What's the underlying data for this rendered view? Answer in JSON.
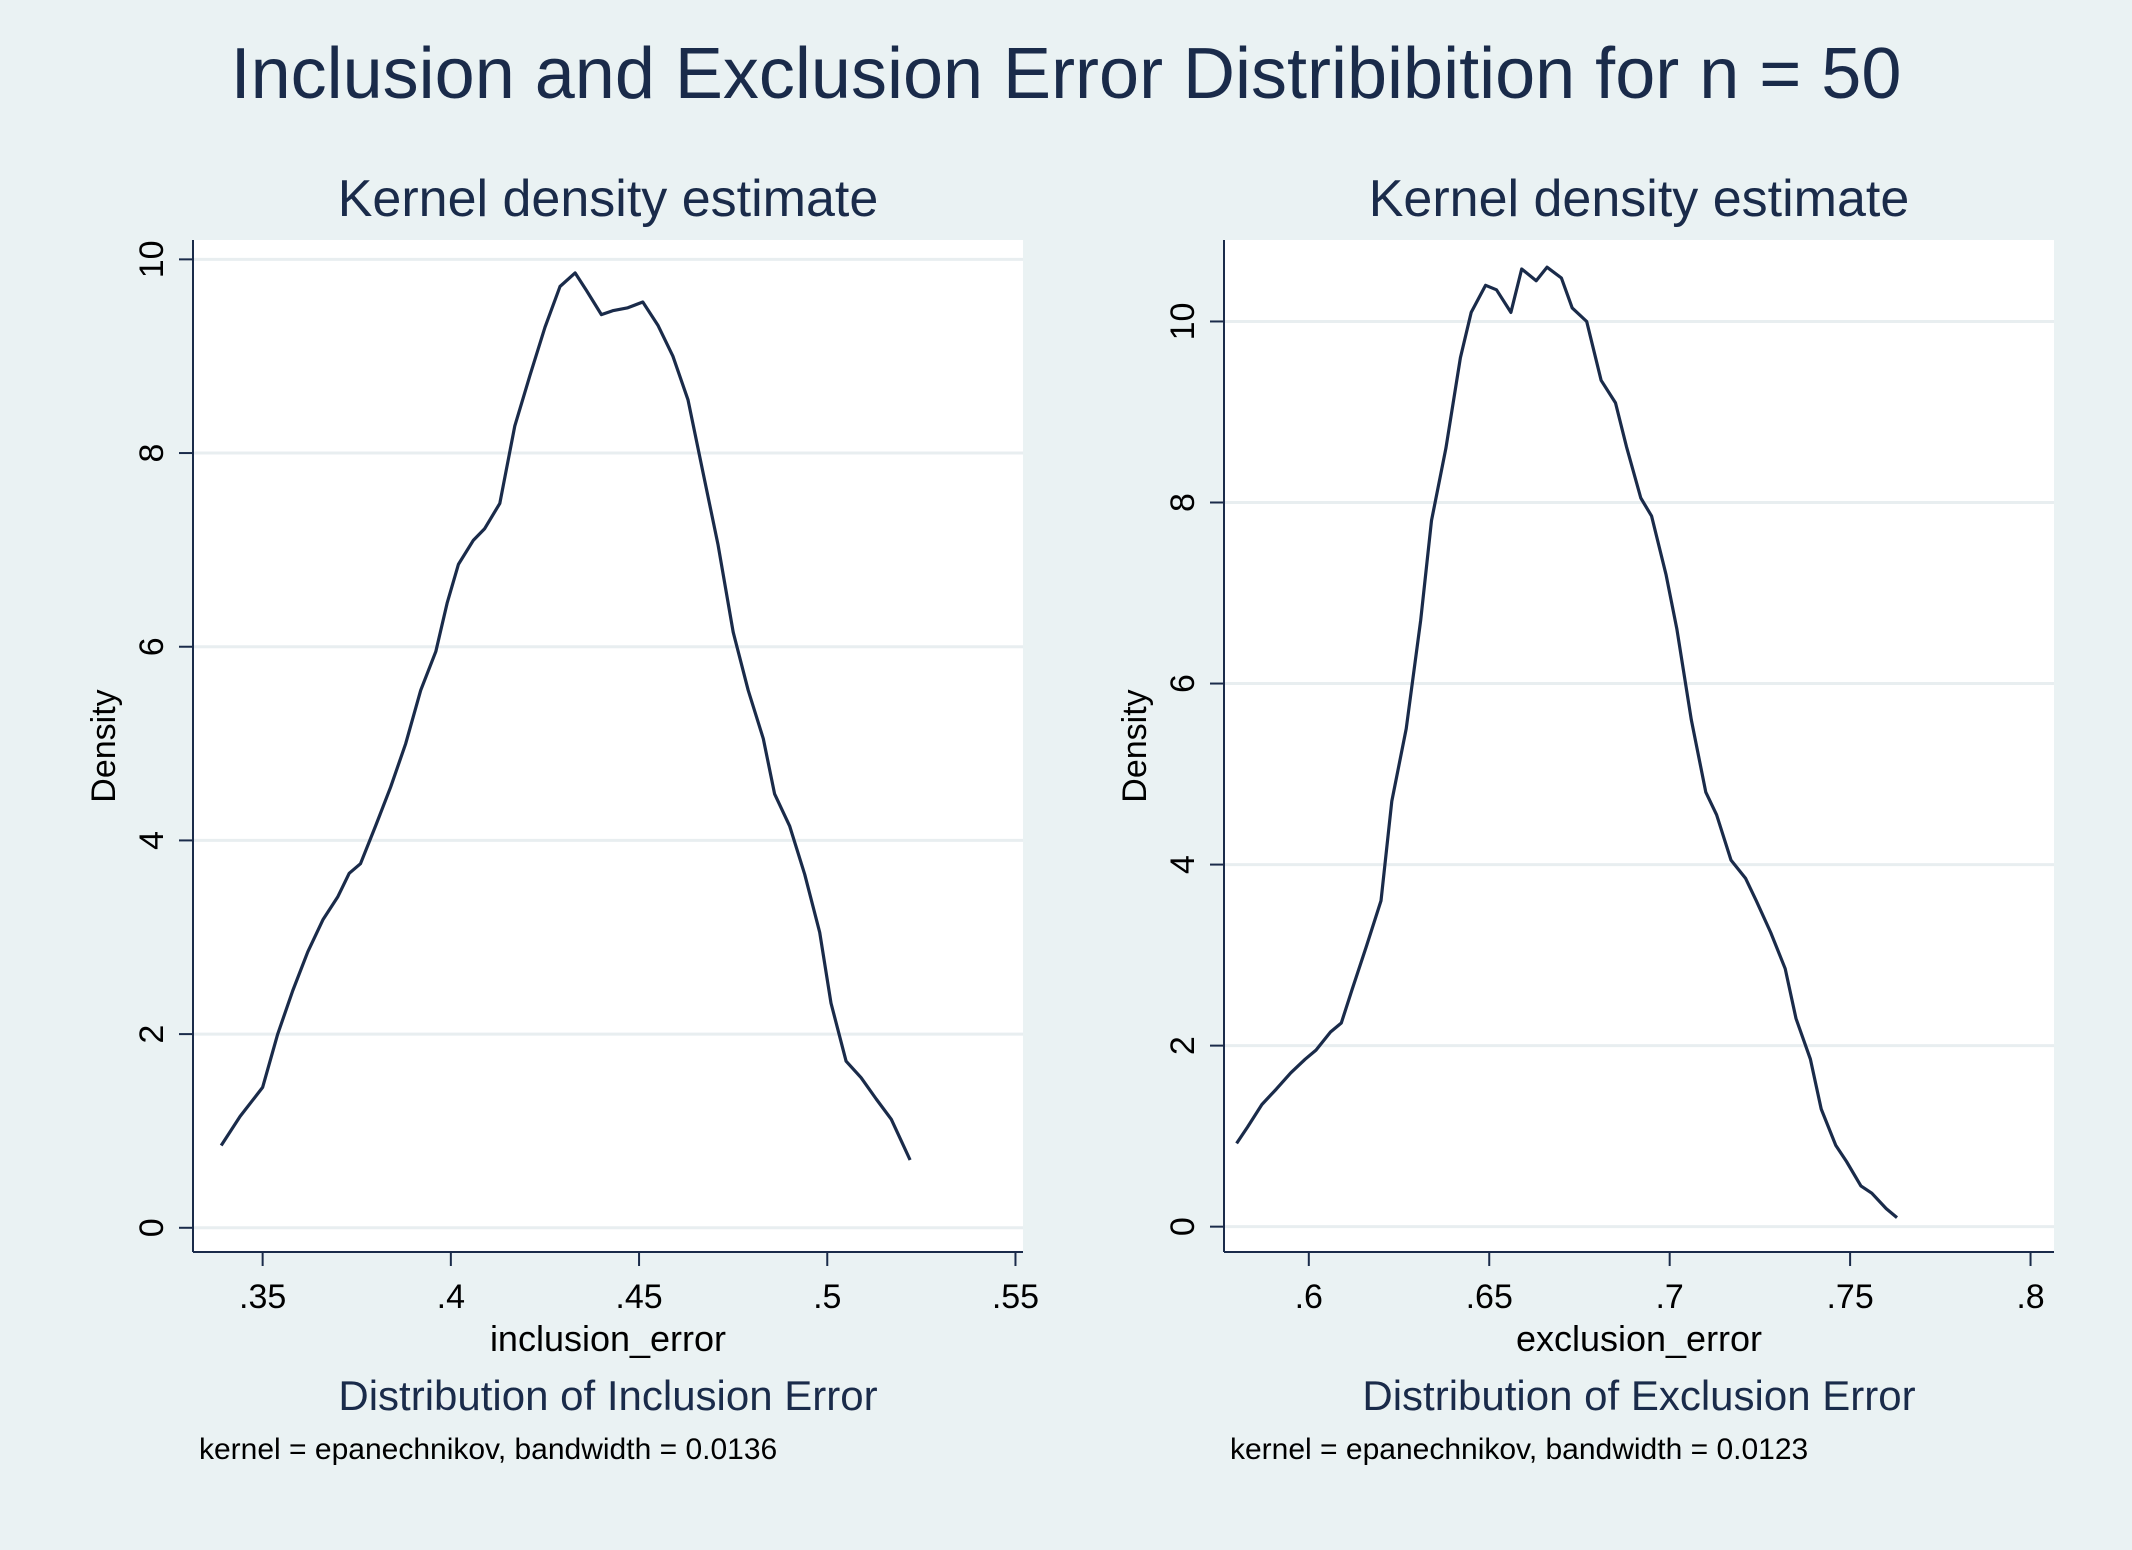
{
  "figure": {
    "title": "Inclusion and Exclusion Error Distribibition for n = 50"
  },
  "colors": {
    "background": "#eaf2f3",
    "plot_area": "#ffffff",
    "gridline": "#e8eef0",
    "line": "#1a2b4a",
    "text": "#1a2b4a"
  },
  "chart_data": [
    {
      "type": "line",
      "title": "Kernel density estimate",
      "xlabel": "inclusion_error",
      "ylabel": "Density",
      "subtitle": "Distribution of Inclusion Error",
      "note": "kernel = epanechnikov, bandwidth = 0.0136",
      "xlim": [
        0.3315,
        0.552
      ],
      "ylim": [
        -0.25,
        10.2
      ],
      "xticks": [
        0.35,
        0.4,
        0.45,
        0.5,
        0.55
      ],
      "xtick_labels": [
        ".35",
        ".4",
        ".45",
        ".5",
        ".55"
      ],
      "yticks": [
        0,
        2,
        4,
        6,
        8,
        10
      ],
      "ytick_labels": [
        "0",
        "2",
        "4",
        "6",
        "8",
        "10"
      ],
      "grid": true,
      "series": [
        {
          "x": [
            0.339,
            0.344,
            0.35,
            0.354,
            0.358,
            0.362,
            0.366,
            0.37,
            0.373,
            0.376,
            0.38,
            0.384,
            0.388,
            0.392,
            0.396,
            0.399,
            0.402,
            0.406,
            0.409,
            0.413,
            0.417,
            0.421,
            0.425,
            0.429,
            0.433,
            0.436,
            0.44,
            0.443,
            0.447,
            0.451,
            0.455,
            0.459,
            0.463,
            0.467,
            0.471,
            0.475,
            0.479,
            0.483,
            0.486,
            0.49,
            0.494,
            0.498,
            0.501,
            0.505,
            0.509,
            0.513,
            0.517,
            0.522
          ],
          "y": [
            0.85,
            1.15,
            1.45,
            2.0,
            2.45,
            2.85,
            3.18,
            3.42,
            3.66,
            3.76,
            4.15,
            4.55,
            5.0,
            5.55,
            5.95,
            6.45,
            6.85,
            7.1,
            7.22,
            7.48,
            8.28,
            8.8,
            9.3,
            9.72,
            9.86,
            9.68,
            9.43,
            9.47,
            9.5,
            9.56,
            9.32,
            9.0,
            8.55,
            7.8,
            7.05,
            6.15,
            5.55,
            5.05,
            4.48,
            4.15,
            3.65,
            3.05,
            2.32,
            1.72,
            1.55,
            1.33,
            1.12,
            0.7
          ]
        }
      ]
    },
    {
      "type": "line",
      "title": "Kernel density estimate",
      "xlabel": "exclusion_error",
      "ylabel": "Density",
      "subtitle": "Distribution of Exclusion Error",
      "note": "kernel = epanechnikov, bandwidth = 0.0123",
      "xlim": [
        0.5765,
        0.8065
      ],
      "ylim": [
        -0.28,
        10.9
      ],
      "xticks": [
        0.6,
        0.65,
        0.7,
        0.75,
        0.8
      ],
      "xtick_labels": [
        ".6",
        ".65",
        ".7",
        ".75",
        ".8"
      ],
      "yticks": [
        0,
        2,
        4,
        6,
        8,
        10
      ],
      "ytick_labels": [
        "0",
        "2",
        "4",
        "6",
        "8",
        "10"
      ],
      "grid": true,
      "series": [
        {
          "x": [
            0.58,
            0.583,
            0.587,
            0.591,
            0.595,
            0.599,
            0.602,
            0.606,
            0.609,
            0.612,
            0.616,
            0.62,
            0.623,
            0.627,
            0.631,
            0.634,
            0.638,
            0.642,
            0.645,
            0.649,
            0.652,
            0.656,
            0.659,
            0.663,
            0.666,
            0.67,
            0.673,
            0.677,
            0.681,
            0.685,
            0.688,
            0.692,
            0.695,
            0.699,
            0.702,
            0.706,
            0.71,
            0.713,
            0.717,
            0.721,
            0.724,
            0.728,
            0.732,
            0.735,
            0.739,
            0.742,
            0.746,
            0.749,
            0.753,
            0.756,
            0.76,
            0.763
          ],
          "y": [
            0.92,
            1.1,
            1.35,
            1.52,
            1.7,
            1.85,
            1.95,
            2.15,
            2.25,
            2.62,
            3.1,
            3.6,
            4.7,
            5.5,
            6.7,
            7.8,
            8.6,
            9.6,
            10.1,
            10.4,
            10.35,
            10.1,
            10.58,
            10.45,
            10.6,
            10.48,
            10.15,
            10.0,
            9.35,
            9.1,
            8.62,
            8.05,
            7.85,
            7.2,
            6.6,
            5.6,
            4.8,
            4.55,
            4.05,
            3.85,
            3.6,
            3.25,
            2.85,
            2.3,
            1.85,
            1.3,
            0.9,
            0.72,
            0.45,
            0.37,
            0.2,
            0.1
          ]
        }
      ]
    }
  ]
}
